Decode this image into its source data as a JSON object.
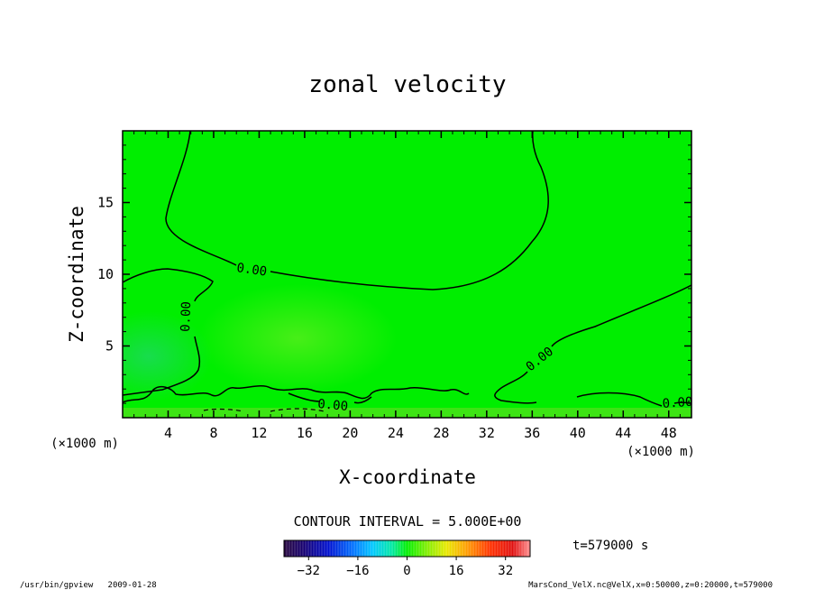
{
  "chart_data": {
    "type": "heatmap",
    "title": "zonal velocity",
    "xlabel": "X-coordinate",
    "ylabel": "Z-coordinate",
    "x_unit": "(×1000 m)",
    "z_unit": "(×1000 m)",
    "xlim": [
      0,
      50
    ],
    "ylim": [
      0,
      20
    ],
    "x_ticks": [
      "4",
      "8",
      "12",
      "16",
      "20",
      "24",
      "28",
      "32",
      "36",
      "40",
      "44",
      "48"
    ],
    "y_ticks": [
      "5",
      "10",
      "15"
    ],
    "contour_interval_label": "CONTOUR INTERVAL = 5.000E+00",
    "contour_levels": [
      0
    ],
    "contour_labels": [
      "0.00",
      "0.00",
      "0.00",
      "0.00",
      "0.00"
    ],
    "colorbar": {
      "range": [
        -40,
        40
      ],
      "ticks": [
        "−32",
        "−16",
        "0",
        "16",
        "32"
      ]
    },
    "time_label": "t=579000 s",
    "footer_left": "/usr/bin/gpview   2009-01-28",
    "footer_right": "MarsCond_VelX.nc@VelX,x=0:50000,z=0:20000,t=579000",
    "colors": {
      "field": "#00ee00",
      "field_light": "#55ee22",
      "field_dark": "#22dd55",
      "contour": "#000000"
    }
  }
}
